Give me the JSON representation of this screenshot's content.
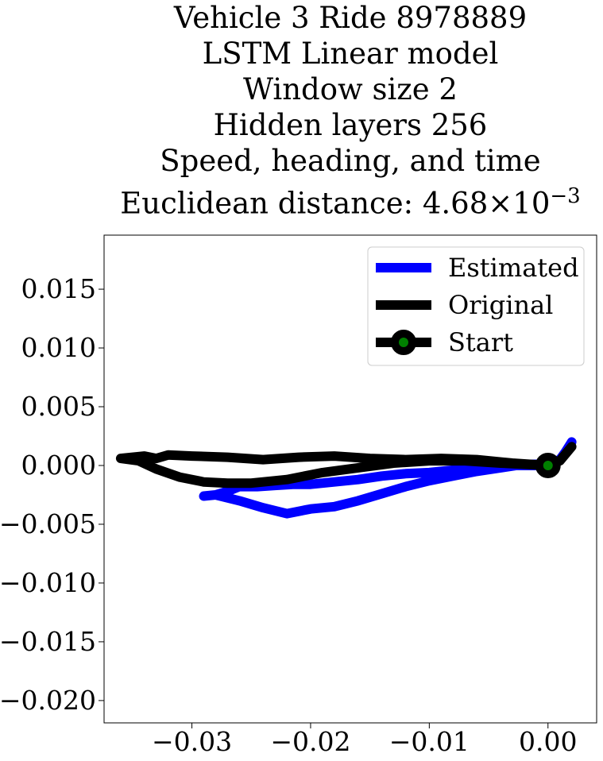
{
  "title_lines": [
    "Vehicle 3 Ride 8978889",
    "LSTM Linear model",
    "Window size 2",
    "Hidden layers 256",
    "Speed, heading, and time"
  ],
  "title_last_prefix": "Euclidean distance: ",
  "title_last_mantissa": "4.68",
  "title_last_times": "×",
  "title_last_base": "10",
  "title_last_exponent": "−3",
  "colors": {
    "estimated": "#0000ff",
    "original": "#000000",
    "start_marker_fill": "#008000",
    "start_marker_edge": "#000000"
  },
  "chart_data": {
    "type": "line",
    "title": "Vehicle 3 Ride 8978889 LSTM Linear model Window size 2 Hidden layers 256 Speed, heading, and time Euclidean distance: 4.68×10^-3",
    "xlabel": "",
    "ylabel": "",
    "xlim": [
      -0.0374,
      0.0041
    ],
    "ylim": [
      -0.0219,
      0.0196
    ],
    "xticks": [
      -0.03,
      -0.02,
      -0.01,
      0.0
    ],
    "xtick_labels": [
      "−0.03",
      "−0.02",
      "−0.01",
      "0.00"
    ],
    "yticks": [
      0.015,
      0.01,
      0.005,
      0.0,
      -0.005,
      -0.01,
      -0.015,
      -0.02
    ],
    "ytick_labels": [
      "0.015",
      "0.010",
      "0.005",
      "0.000",
      "−0.005",
      "−0.010",
      "−0.015",
      "−0.020"
    ],
    "grid": false,
    "legend_position": "top-right",
    "legend": [
      "Estimated",
      "Original",
      "Start"
    ],
    "series": [
      {
        "name": "Estimated",
        "color": "#0000ff",
        "x": [
          0.0,
          -0.002,
          -0.004,
          -0.006,
          -0.008,
          -0.01,
          -0.012,
          -0.014,
          -0.016,
          -0.018,
          -0.019,
          -0.02,
          -0.0215,
          -0.023,
          -0.0245,
          -0.026,
          -0.027,
          -0.028,
          -0.029,
          -0.028,
          -0.026,
          -0.024,
          -0.022,
          -0.02,
          -0.018,
          -0.016,
          -0.014,
          -0.012,
          -0.01,
          -0.008,
          -0.006,
          -0.004,
          -0.002,
          0.0,
          0.001,
          0.0015,
          0.002
        ],
        "y": [
          0.0,
          0.0,
          0.0,
          -0.0002,
          -0.0004,
          -0.0006,
          -0.0007,
          -0.0009,
          -0.0012,
          -0.0014,
          -0.0015,
          -0.0016,
          -0.0016,
          -0.0017,
          -0.0018,
          -0.0018,
          -0.0022,
          -0.0025,
          -0.0026,
          -0.0025,
          -0.003,
          -0.0036,
          -0.0041,
          -0.0037,
          -0.0035,
          -0.003,
          -0.0024,
          -0.0018,
          -0.0013,
          -0.0009,
          -0.0005,
          -0.0002,
          0.0001,
          0.0001,
          0.0005,
          0.0012,
          0.002
        ]
      },
      {
        "name": "Original",
        "color": "#000000",
        "x": [
          0.0,
          -0.003,
          -0.006,
          -0.009,
          -0.012,
          -0.015,
          -0.018,
          -0.021,
          -0.024,
          -0.027,
          -0.03,
          -0.032,
          -0.033,
          -0.034,
          -0.035,
          -0.036,
          -0.0345,
          -0.033,
          -0.031,
          -0.029,
          -0.027,
          -0.025,
          -0.022,
          -0.019,
          -0.016,
          -0.013,
          -0.01,
          -0.007,
          -0.004,
          -0.002,
          0.0,
          0.001,
          0.002
        ],
        "y": [
          0.0,
          0.0002,
          0.0005,
          0.0006,
          0.0005,
          0.0006,
          0.0008,
          0.0007,
          0.0005,
          0.0007,
          0.0008,
          0.0009,
          0.0006,
          0.0008,
          0.0007,
          0.0006,
          0.0004,
          -0.0003,
          -0.001,
          -0.0014,
          -0.0015,
          -0.0015,
          -0.0012,
          -0.0006,
          -0.0002,
          0.0002,
          0.0004,
          0.0004,
          0.0002,
          0.0001,
          0.0,
          0.0004,
          0.0016
        ]
      },
      {
        "name": "Start",
        "x": [
          0.0
        ],
        "y": [
          0.0
        ],
        "marker": "circle",
        "color": "#008000"
      }
    ]
  }
}
